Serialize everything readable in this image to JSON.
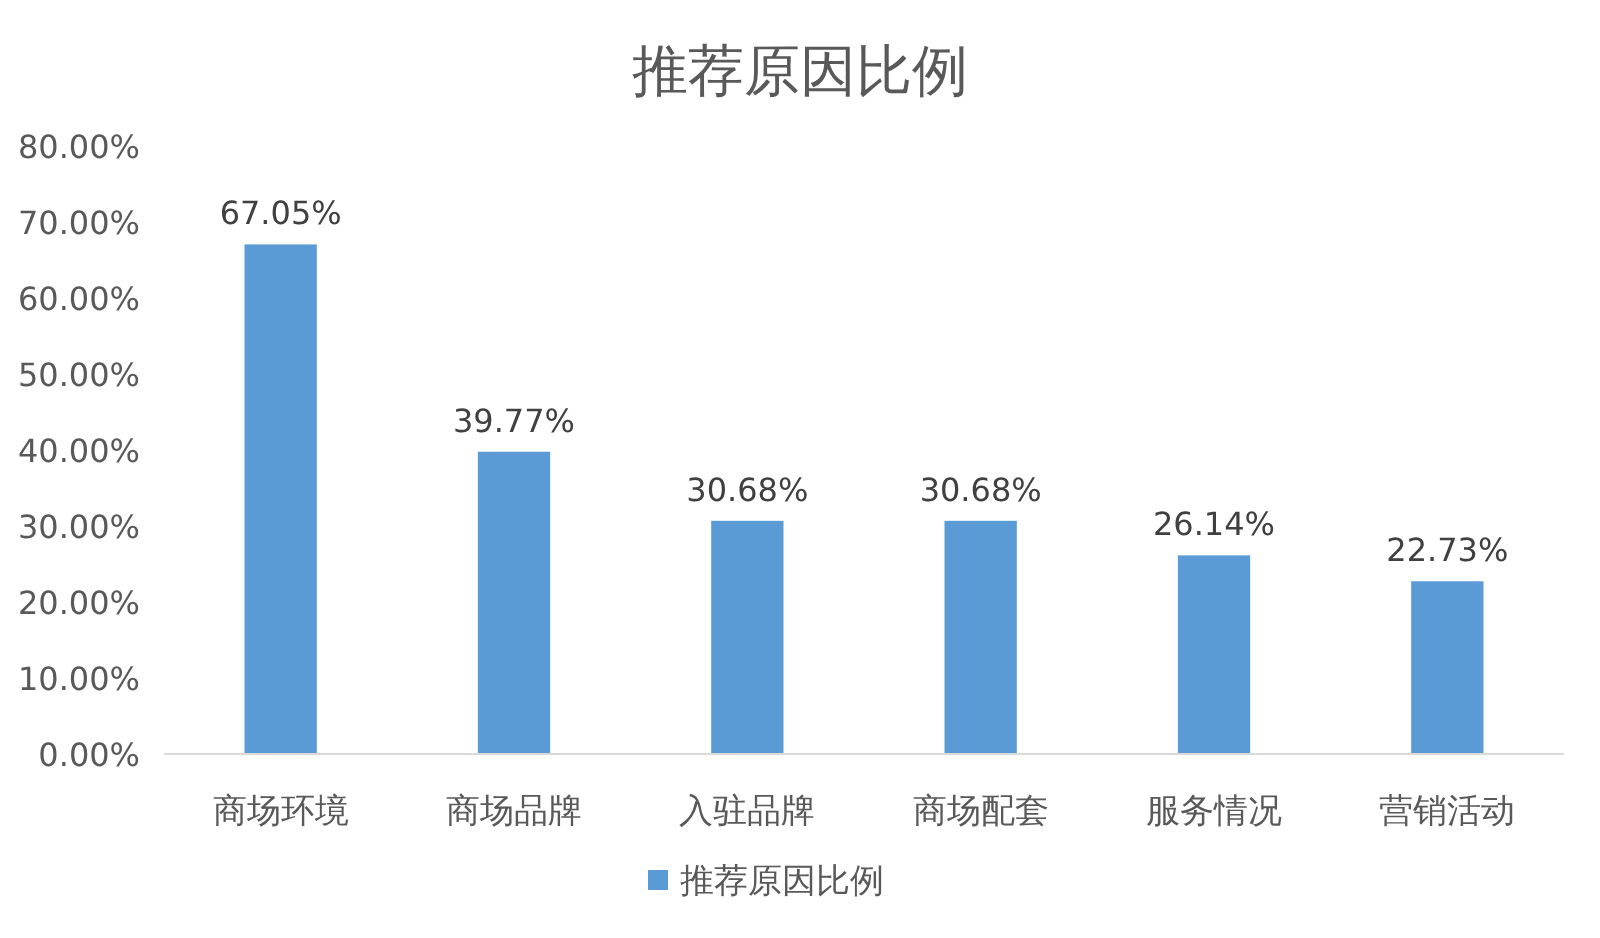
{
  "chart_data": {
    "type": "bar",
    "title": "推荐原因比例",
    "categories": [
      "商场环境",
      "商场品牌",
      "入驻品牌",
      "商场配套",
      "服务情况",
      "营销活动"
    ],
    "series": [
      {
        "name": "推荐原因比例",
        "color": "#5b9bd5",
        "values": [
          67.05,
          39.77,
          30.68,
          30.68,
          26.14,
          22.73
        ],
        "value_labels": [
          "67.05%",
          "39.77%",
          "30.68%",
          "30.68%",
          "26.14%",
          "22.73%"
        ]
      }
    ],
    "ylim": [
      0,
      80
    ],
    "yticks": [
      {
        "value": 0,
        "label": "0.00%"
      },
      {
        "value": 10,
        "label": "10.00%"
      },
      {
        "value": 20,
        "label": "20.00%"
      },
      {
        "value": 30,
        "label": "30.00%"
      },
      {
        "value": 40,
        "label": "40.00%"
      },
      {
        "value": 50,
        "label": "50.00%"
      },
      {
        "value": 60,
        "label": "60.00%"
      },
      {
        "value": 70,
        "label": "70.00%"
      },
      {
        "value": 80,
        "label": "80.00%"
      }
    ],
    "grid": false,
    "legend": "bottom"
  }
}
